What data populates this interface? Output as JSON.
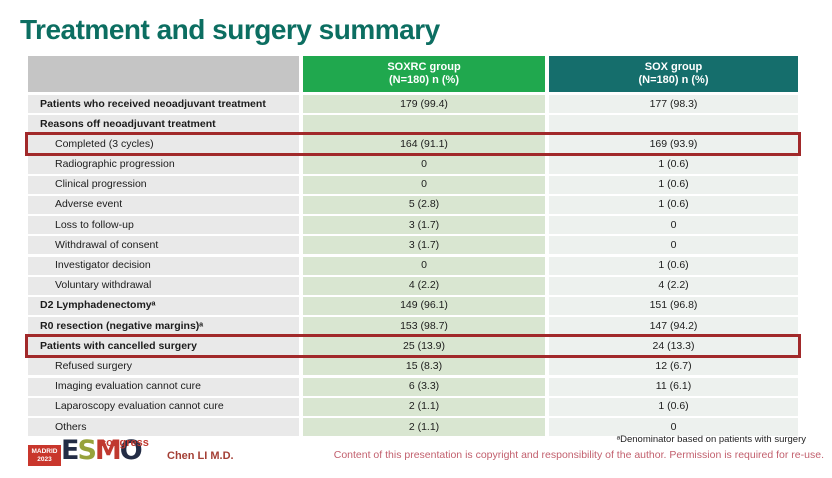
{
  "slide": {
    "title": "Treatment and surgery summary"
  },
  "table": {
    "columns": [
      {
        "label": "SOXRC group",
        "sublabel": "(N=180)  n (%)",
        "color": "#20a84e"
      },
      {
        "label": "SOX group",
        "sublabel": "(N=180)  n (%)",
        "color": "#156e6c"
      }
    ],
    "rows": [
      {
        "label": "Patients who received neoadjuvant treatment",
        "soxrc": "179 (99.4)",
        "sox": "177 (98.3)",
        "section": true,
        "indent": false,
        "highlight": false
      },
      {
        "label": "Reasons off neoadjuvant treatment",
        "soxrc": "",
        "sox": "",
        "section": true,
        "indent": false,
        "highlight": false
      },
      {
        "label": "Completed (3 cycles)",
        "soxrc": "164 (91.1)",
        "sox": "169 (93.9)",
        "section": false,
        "indent": true,
        "highlight": true
      },
      {
        "label": "Radiographic progression",
        "soxrc": "0",
        "sox": "1 (0.6)",
        "section": false,
        "indent": true,
        "highlight": false
      },
      {
        "label": "Clinical progression",
        "soxrc": "0",
        "sox": "1 (0.6)",
        "section": false,
        "indent": true,
        "highlight": false
      },
      {
        "label": "Adverse event",
        "soxrc": "5 (2.8)",
        "sox": "1 (0.6)",
        "section": false,
        "indent": true,
        "highlight": false
      },
      {
        "label": "Loss to follow-up",
        "soxrc": "3 (1.7)",
        "sox": "0",
        "section": false,
        "indent": true,
        "highlight": false
      },
      {
        "label": "Withdrawal of consent",
        "soxrc": "3 (1.7)",
        "sox": "0",
        "section": false,
        "indent": true,
        "highlight": false
      },
      {
        "label": "Investigator decision",
        "soxrc": "0",
        "sox": "1 (0.6)",
        "section": false,
        "indent": true,
        "highlight": false
      },
      {
        "label": "Voluntary withdrawal",
        "soxrc": "4 (2.2)",
        "sox": "4 (2.2)",
        "section": false,
        "indent": true,
        "highlight": false
      },
      {
        "label": "D2 Lymphadenectomyᵃ",
        "soxrc": "149 (96.1)",
        "sox": "151 (96.8)",
        "section": true,
        "indent": false,
        "highlight": false
      },
      {
        "label": "R0 resection (negative margins)ᵃ",
        "soxrc": "153 (98.7)",
        "sox": "147 (94.2)",
        "section": true,
        "indent": false,
        "highlight": false
      },
      {
        "label": "Patients with cancelled surgery",
        "soxrc": "25 (13.9)",
        "sox": "24 (13.3)",
        "section": true,
        "indent": false,
        "highlight": true
      },
      {
        "label": "Refused surgery",
        "soxrc": "15 (8.3)",
        "sox": "12 (6.7)",
        "section": false,
        "indent": true,
        "highlight": false
      },
      {
        "label": "Imaging evaluation cannot cure",
        "soxrc": "6 (3.3)",
        "sox": "11 (6.1)",
        "section": false,
        "indent": true,
        "highlight": false
      },
      {
        "label": "Laparoscopy evaluation cannot cure",
        "soxrc": "2 (1.1)",
        "sox": "1 (0.6)",
        "section": false,
        "indent": true,
        "highlight": false
      },
      {
        "label": "Others",
        "soxrc": "2 (1.1)",
        "sox": "0",
        "section": false,
        "indent": true,
        "highlight": false
      }
    ]
  },
  "footer": {
    "logo": {
      "venue_line1": "MADRID",
      "venue_line2": "2023",
      "congress": "congress",
      "letters": [
        {
          "char": "E",
          "color": "#232c45"
        },
        {
          "char": "S",
          "color": "#97a23b"
        },
        {
          "char": "M",
          "color": "#c0392f"
        },
        {
          "char": "O",
          "color": "#232c45"
        }
      ]
    },
    "presenter": "Chen LI M.D.",
    "footnote": "ᵃDenominator based on patients with surgery",
    "copyright": "Content of this presentation is copyright and responsibility of the author. Permission is required for re-use."
  },
  "colors": {
    "title": "#0c6e61",
    "soxrc_header": "#20a84e",
    "sox_header": "#156e6c",
    "highlight_border": "#a1292a"
  }
}
